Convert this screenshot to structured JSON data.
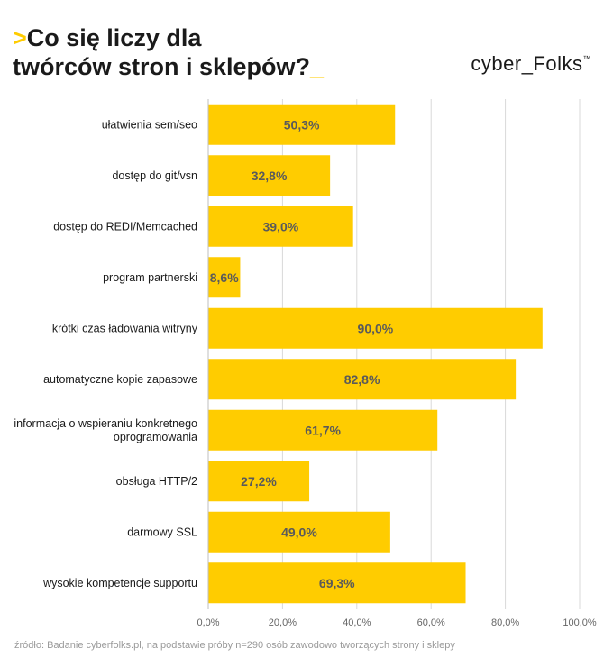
{
  "header": {
    "title_prefix": ">",
    "title_line1": "Co się liczy dla",
    "title_line2": "twórców stron i sklepów?",
    "title_suffix": "_",
    "logo": "cyber_Folks",
    "logo_mark": "™"
  },
  "colors": {
    "accent": "#FFCC00",
    "bar": "#FFCC00",
    "grid": "#d9d9d9",
    "text": "#1a1a1a",
    "value_label": "#5a5a5a"
  },
  "chart_data": {
    "type": "bar",
    "orientation": "horizontal",
    "title": "Co się liczy dla twórców stron i sklepów?",
    "categories": [
      [
        "ułatwienia sem/seo"
      ],
      [
        "dostęp do git/vsn"
      ],
      [
        "dostęp do REDI/Memcached"
      ],
      [
        "program partnerski"
      ],
      [
        "krótki czas ładowania witryny"
      ],
      [
        "automatyczne kopie zapasowe"
      ],
      [
        "informacja o wspieraniu konkretnego",
        "oprogramowania"
      ],
      [
        "obsługa HTTP/2"
      ],
      [
        "darmowy SSL"
      ],
      [
        "wysokie kompetencje supportu"
      ]
    ],
    "values": [
      50.3,
      32.8,
      39.0,
      8.6,
      90.0,
      82.8,
      61.7,
      27.2,
      49.0,
      69.3
    ],
    "value_labels": [
      "50,3%",
      "32,8%",
      "39,0%",
      "8,6%",
      "90,0%",
      "82,8%",
      "61,7%",
      "27,2%",
      "49,0%",
      "69,3%"
    ],
    "xlim": [
      0,
      100
    ],
    "x_ticks": [
      0,
      20,
      40,
      60,
      80,
      100
    ],
    "x_tick_labels": [
      "0,0%",
      "20,0%",
      "40,0%",
      "60,0%",
      "80,0%",
      "100,0%"
    ],
    "xlabel": "",
    "ylabel": "",
    "grid": true
  },
  "footer": {
    "source": "źródło: Badanie cyberfolks.pl, na podstawie próby n=290 osób zawodowo tworzących strony i sklepy"
  }
}
